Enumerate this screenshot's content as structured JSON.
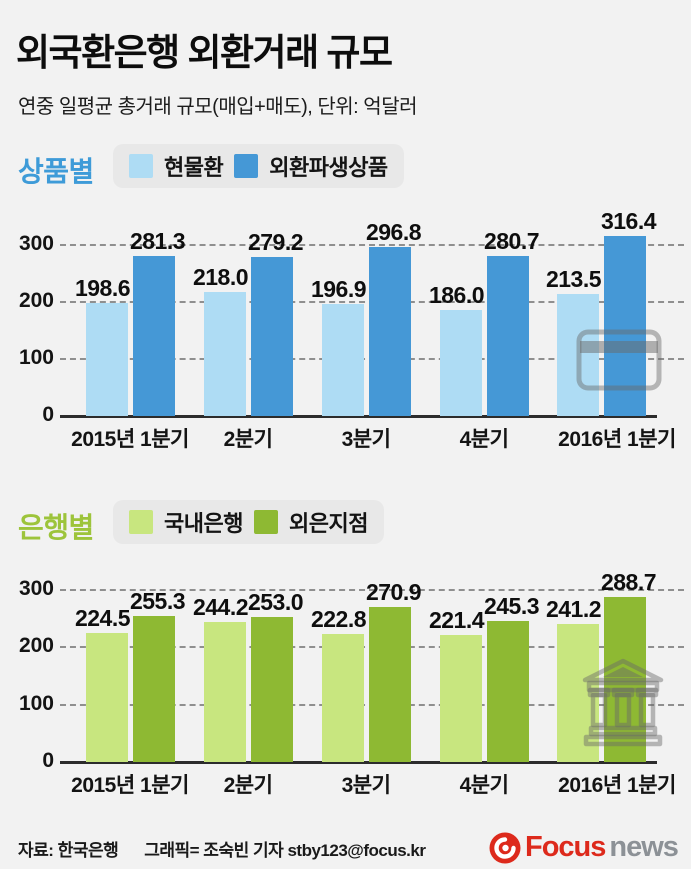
{
  "header": {
    "title": "외국환은행 외환거래 규모",
    "subtitle": "연중 일평균 총거래 규모(매입+매도), 단위: 억달러"
  },
  "footer": {
    "source": "자료: 한국은행",
    "credit": "그래픽= 조숙빈 기자 stby123@focus.kr",
    "logo_focus": "Focus",
    "logo_news": "news",
    "logo_red": "#dd2a1c",
    "logo_gray": "#8c9196"
  },
  "colors": {
    "background": "#f2f2f2",
    "legend_pill": "#e8e8e8",
    "grid": "#8f8f8f",
    "axis": "#2c2c2c"
  },
  "chart_data": [
    {
      "type": "bar",
      "section_label": "상품별",
      "section_color": "#3e9bd8",
      "categories": [
        "2015년 1분기",
        "2분기",
        "3분기",
        "4분기",
        "2016년 1분기"
      ],
      "series": [
        {
          "name": "현물환",
          "color": "#aedcf4",
          "values": [
            198.6,
            218.0,
            196.9,
            186.0,
            213.5
          ]
        },
        {
          "name": "외환파생상품",
          "color": "#4598d6",
          "values": [
            281.3,
            279.2,
            296.8,
            280.7,
            316.4
          ]
        }
      ],
      "yticks": [
        300,
        200,
        100,
        0
      ],
      "ylim": [
        0,
        350
      ],
      "grid": "dashed-horizontal",
      "legend_position": "top",
      "watermark_icon": "credit-card-icon"
    },
    {
      "type": "bar",
      "section_label": "은행별",
      "section_color": "#9dc43b",
      "categories": [
        "2015년 1분기",
        "2분기",
        "3분기",
        "4분기",
        "2016년 1분기"
      ],
      "series": [
        {
          "name": "국내은행",
          "color": "#c8e67f",
          "values": [
            224.5,
            244.2,
            222.8,
            221.4,
            241.2
          ]
        },
        {
          "name": "외은지점",
          "color": "#8eb933",
          "values": [
            255.3,
            253.0,
            270.9,
            245.3,
            288.7
          ]
        }
      ],
      "yticks": [
        300,
        200,
        100,
        0
      ],
      "ylim": [
        0,
        350
      ],
      "grid": "dashed-horizontal",
      "legend_position": "top",
      "watermark_icon": "bank-icon"
    }
  ]
}
